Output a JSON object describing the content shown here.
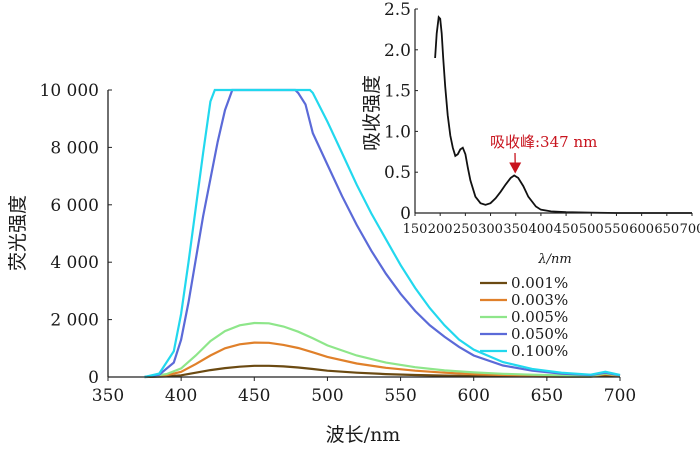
{
  "chart_data": [
    {
      "type": "line",
      "xlabel": "波长/nm",
      "ylabel": "荧光强度",
      "xlim": [
        350,
        700
      ],
      "ylim": [
        0,
        10000
      ],
      "xticks": [
        350,
        400,
        450,
        500,
        550,
        600,
        650,
        700
      ],
      "xtick_labels": [
        "350",
        "400",
        "450",
        "500",
        "550",
        "600",
        "650",
        "700"
      ],
      "yticks": [
        0,
        2000,
        4000,
        6000,
        8000,
        10000
      ],
      "ytick_labels": [
        "0",
        "2 000",
        "4 000",
        "6 000",
        "8 000",
        "10 000"
      ],
      "grid": false,
      "legend_position": "right",
      "series": [
        {
          "name": "0.001%",
          "color": "#6b4a12",
          "x": [
            375,
            390,
            400,
            410,
            420,
            430,
            440,
            450,
            460,
            470,
            480,
            490,
            500,
            520,
            540,
            560,
            580,
            600,
            620,
            640,
            660,
            680,
            690,
            700
          ],
          "y": [
            0,
            20,
            60,
            150,
            240,
            310,
            360,
            390,
            390,
            370,
            330,
            280,
            220,
            150,
            100,
            70,
            50,
            35,
            25,
            20,
            15,
            12,
            60,
            20
          ]
        },
        {
          "name": "0.003%",
          "color": "#e0802a",
          "x": [
            375,
            390,
            400,
            410,
            420,
            430,
            440,
            450,
            460,
            470,
            480,
            490,
            500,
            520,
            540,
            560,
            580,
            600,
            620,
            640,
            660,
            680,
            690,
            700
          ],
          "y": [
            0,
            60,
            180,
            450,
            750,
            1000,
            1140,
            1200,
            1190,
            1120,
            1010,
            860,
            700,
            470,
            320,
            220,
            150,
            100,
            70,
            50,
            35,
            25,
            100,
            40
          ]
        },
        {
          "name": "0.005%",
          "color": "#8ee68a",
          "x": [
            375,
            390,
            400,
            410,
            420,
            430,
            440,
            450,
            460,
            470,
            480,
            490,
            500,
            520,
            540,
            560,
            580,
            600,
            620,
            640,
            660,
            680,
            690,
            700
          ],
          "y": [
            0,
            100,
            300,
            750,
            1250,
            1600,
            1800,
            1880,
            1870,
            1760,
            1580,
            1350,
            1100,
            750,
            500,
            340,
            230,
            160,
            110,
            80,
            60,
            40,
            120,
            60
          ]
        },
        {
          "name": "0.050%",
          "color": "#5b6ad8",
          "x": [
            375,
            385,
            395,
            400,
            405,
            410,
            415,
            420,
            425,
            430,
            435,
            440,
            450,
            460,
            470,
            478,
            480,
            485,
            490,
            500,
            510,
            520,
            530,
            540,
            550,
            560,
            570,
            580,
            590,
            600,
            620,
            640,
            660,
            680,
            690,
            700
          ],
          "y": [
            0,
            80,
            500,
            1300,
            2600,
            4100,
            5600,
            6900,
            8200,
            9300,
            10000,
            10000,
            10000,
            10000,
            10000,
            10000,
            9900,
            9500,
            8500,
            7400,
            6300,
            5300,
            4400,
            3600,
            2900,
            2300,
            1800,
            1400,
            1050,
            750,
            400,
            220,
            120,
            70,
            150,
            60
          ]
        },
        {
          "name": "0.100%",
          "color": "#22d8ee",
          "x": [
            375,
            385,
            395,
            400,
            405,
            410,
            415,
            420,
            423,
            425,
            430,
            440,
            450,
            460,
            470,
            480,
            485,
            488,
            490,
            495,
            500,
            510,
            520,
            530,
            540,
            550,
            560,
            570,
            580,
            590,
            600,
            620,
            640,
            660,
            680,
            690,
            700
          ],
          "y": [
            0,
            120,
            900,
            2200,
            4000,
            5900,
            7800,
            9600,
            10000,
            10000,
            10000,
            10000,
            10000,
            10000,
            10000,
            10000,
            10000,
            10000,
            9900,
            9400,
            8900,
            7800,
            6700,
            5700,
            4800,
            3900,
            3100,
            2400,
            1800,
            1300,
            950,
            520,
            280,
            150,
            80,
            180,
            70
          ]
        }
      ]
    },
    {
      "type": "line",
      "xlabel": "λ/nm",
      "ylabel": "吸收强度",
      "xlim": [
        150,
        700
      ],
      "ylim": [
        0,
        2.5
      ],
      "xticks": [
        150,
        200,
        250,
        300,
        350,
        400,
        450,
        500,
        550,
        600,
        650,
        700
      ],
      "xtick_labels": [
        "150",
        "200",
        "250",
        "300",
        "350",
        "400",
        "450",
        "500",
        "550",
        "600",
        "650",
        "700"
      ],
      "yticks": [
        0,
        0.5,
        1.0,
        1.5,
        2.0,
        2.5
      ],
      "ytick_labels": [
        "0",
        "0.5",
        "1.0",
        "1.5",
        "2.0",
        "2.5"
      ],
      "grid": false,
      "annotation": {
        "text": "吸收峰:347 nm",
        "x": 347,
        "y": 0.46
      },
      "series": [
        {
          "color": "#111111",
          "x": [
            190,
            193,
            197,
            200,
            203,
            206,
            210,
            215,
            220,
            225,
            230,
            235,
            240,
            245,
            250,
            255,
            260,
            270,
            280,
            290,
            300,
            310,
            320,
            330,
            340,
            347,
            355,
            365,
            375,
            390,
            400,
            420,
            450,
            500,
            550,
            600,
            650,
            700
          ],
          "y": [
            1.9,
            2.2,
            2.4,
            2.38,
            2.2,
            1.9,
            1.55,
            1.2,
            0.95,
            0.8,
            0.7,
            0.72,
            0.78,
            0.8,
            0.72,
            0.55,
            0.4,
            0.2,
            0.12,
            0.1,
            0.12,
            0.18,
            0.26,
            0.35,
            0.43,
            0.46,
            0.43,
            0.33,
            0.2,
            0.08,
            0.04,
            0.02,
            0.01,
            0.005,
            0.0,
            0.0,
            0.0,
            0.0
          ]
        }
      ]
    }
  ]
}
